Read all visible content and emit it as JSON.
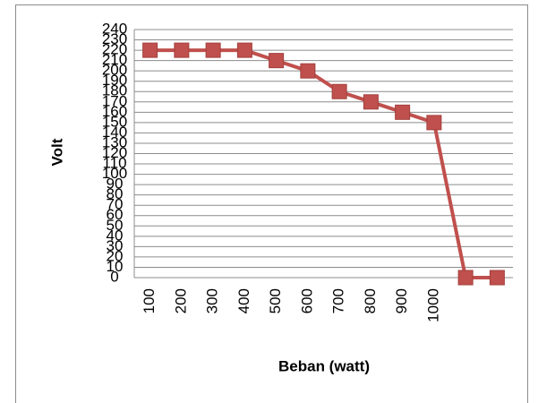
{
  "chart_data": {
    "type": "line",
    "x_label": "Beban (watt)",
    "y_label": "Volt",
    "categories": [
      "100",
      "200",
      "300",
      "400",
      "500",
      "600",
      "700",
      "800",
      "900",
      "1000",
      null,
      null
    ],
    "series": [
      {
        "name": "Volt",
        "color": "#c0504d",
        "values": [
          220,
          220,
          220,
          220,
          210,
          200,
          180,
          170,
          160,
          150,
          0,
          0
        ]
      }
    ],
    "ylim": [
      0,
      240
    ],
    "yticks": [
      0,
      10,
      20,
      30,
      40,
      50,
      60,
      70,
      80,
      90,
      100,
      110,
      120,
      130,
      140,
      150,
      160,
      170,
      180,
      190,
      200,
      210,
      220,
      230,
      240
    ],
    "grid": true
  }
}
